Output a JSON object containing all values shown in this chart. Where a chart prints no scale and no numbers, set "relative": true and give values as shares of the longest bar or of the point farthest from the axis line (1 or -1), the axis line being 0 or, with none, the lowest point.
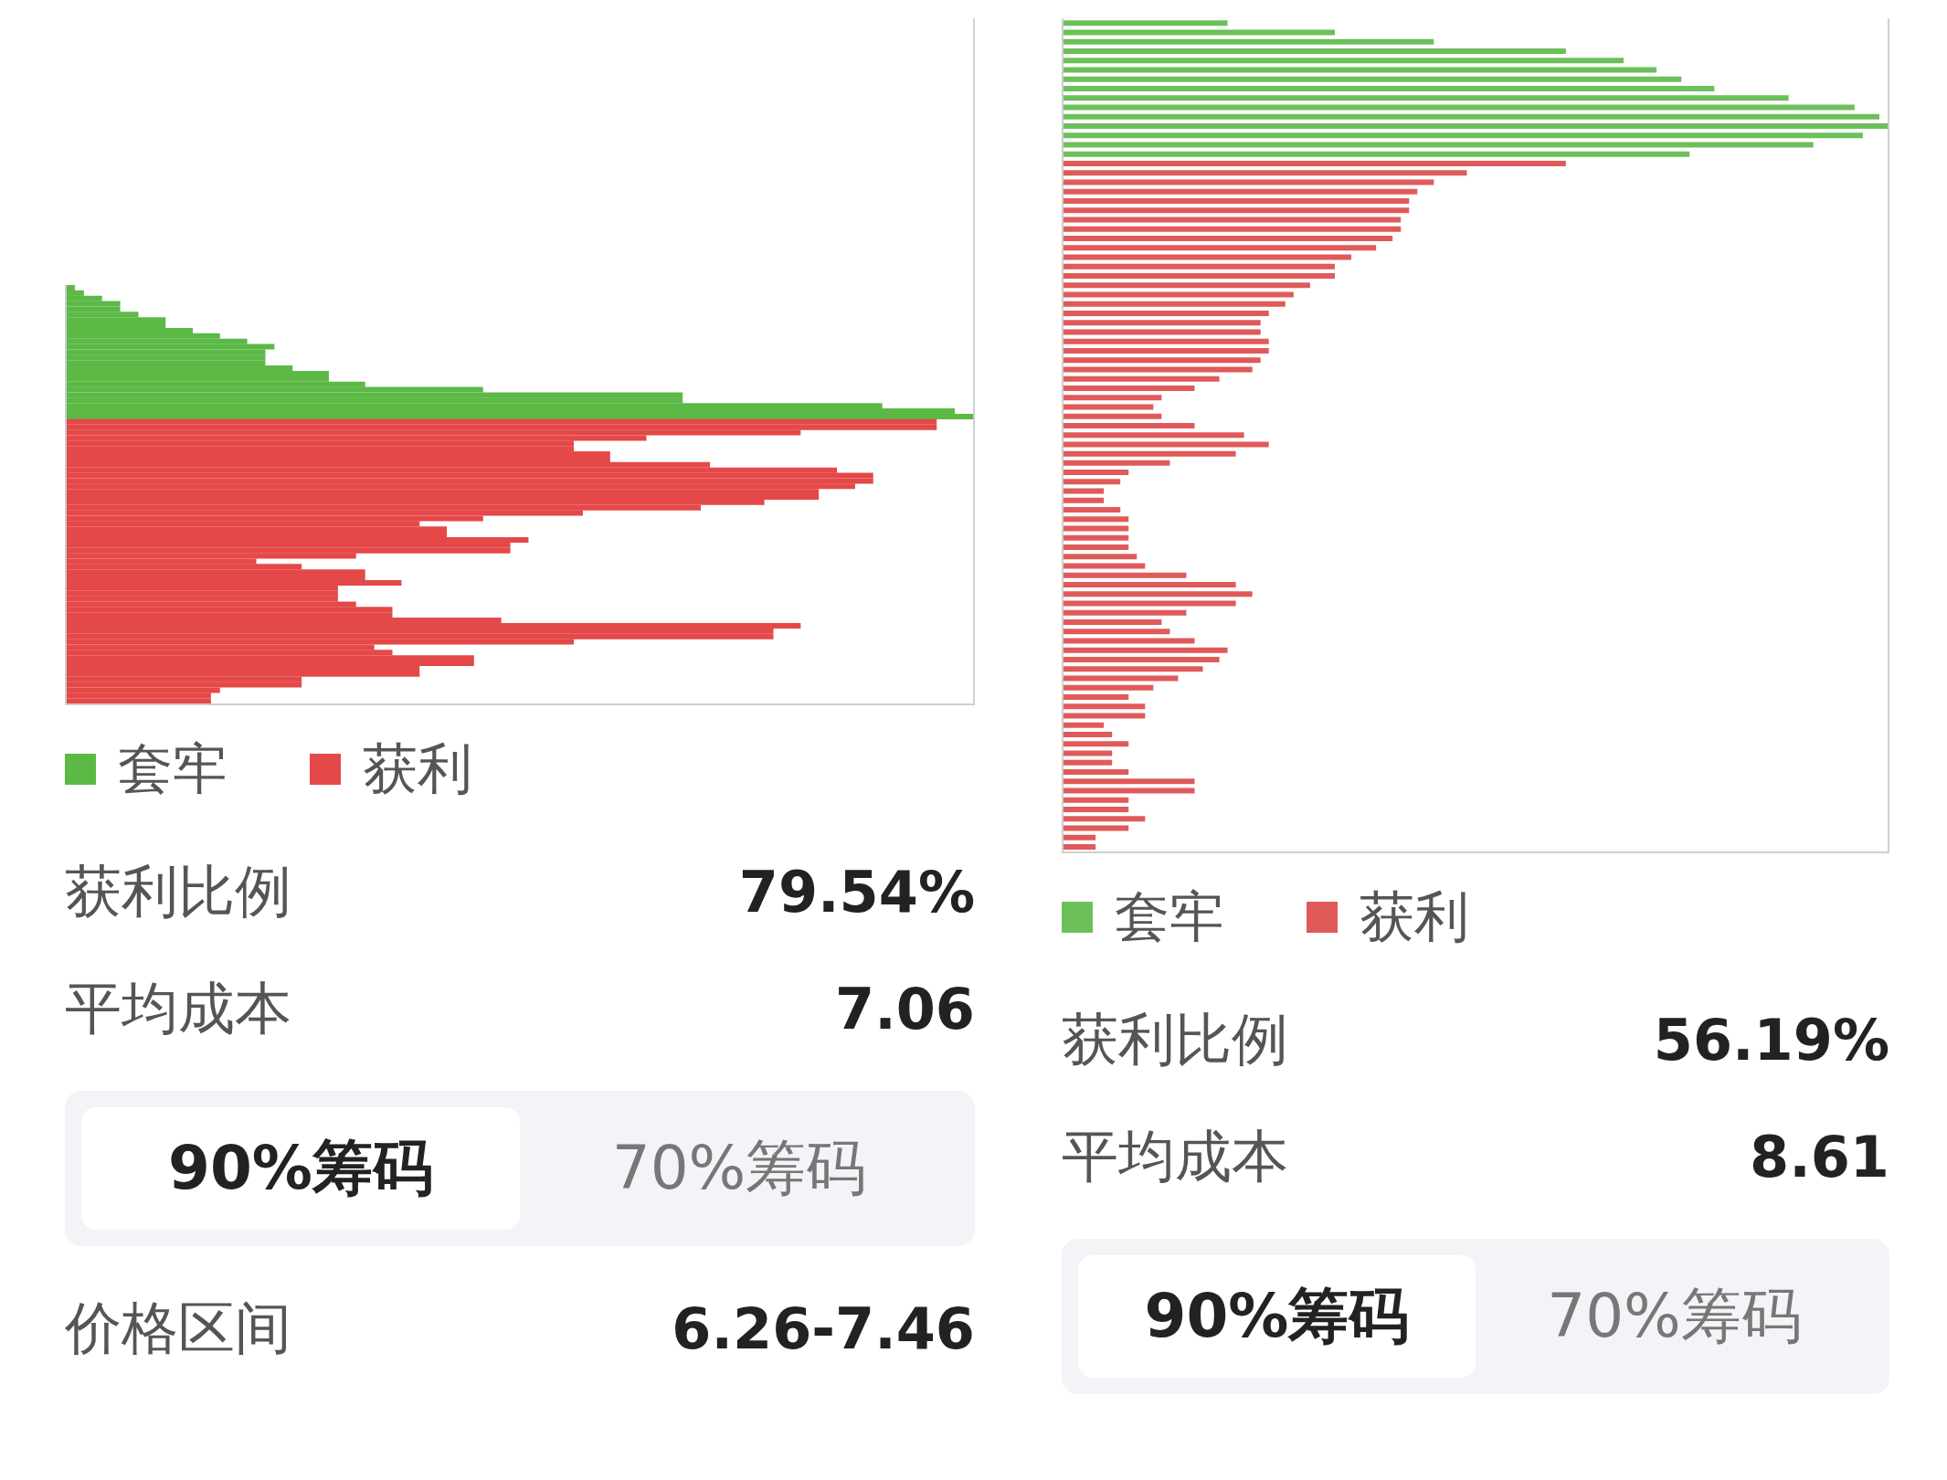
{
  "chart_data": [
    {
      "type": "bar",
      "orientation": "horizontal",
      "relative": true,
      "stacked": true,
      "legend": "bottom left",
      "categories": [
        null,
        null,
        null,
        null,
        null,
        null,
        null,
        null,
        null,
        null,
        null,
        null,
        null,
        null,
        null,
        null,
        null,
        null,
        null,
        null,
        null,
        null,
        null,
        null,
        null,
        null,
        null,
        null,
        null,
        null,
        null,
        null,
        null,
        null,
        null,
        null,
        null,
        null,
        null,
        null,
        null,
        null,
        null,
        null,
        null,
        null,
        null,
        null,
        null,
        null,
        null,
        null,
        null,
        null,
        null,
        null,
        null,
        null,
        null,
        null,
        null,
        null,
        null,
        null,
        null,
        null,
        null,
        null,
        null,
        null,
        null,
        null,
        null,
        null,
        null,
        null,
        null,
        null
      ],
      "series": [
        {
          "name": "套牢",
          "color": "#5cb946",
          "values": [
            0.01,
            0.02,
            0.04,
            0.06,
            0.06,
            0.08,
            0.11,
            0.11,
            0.14,
            0.17,
            0.2,
            0.23,
            0.22,
            0.22,
            0.22,
            0.25,
            0.29,
            0.29,
            0.33,
            0.46,
            0.68,
            0.68,
            0.9,
            0.98,
            1,
            null,
            null,
            null,
            null,
            null,
            null,
            null,
            null,
            null,
            null,
            null,
            null,
            null,
            null,
            null,
            null,
            null,
            null,
            null,
            null,
            null,
            null,
            null,
            null,
            null,
            null,
            null,
            null,
            null,
            null,
            null,
            null,
            null,
            null,
            null,
            null,
            null,
            null,
            null,
            null,
            null,
            null,
            null,
            null,
            null,
            null,
            null,
            null,
            null,
            null,
            null,
            null,
            null
          ]
        },
        {
          "name": "获利",
          "color": "#e54848",
          "values": [
            null,
            null,
            null,
            null,
            null,
            null,
            null,
            null,
            null,
            null,
            null,
            null,
            null,
            null,
            null,
            null,
            null,
            null,
            null,
            null,
            null,
            null,
            null,
            null,
            null,
            0.96,
            0.96,
            0.81,
            0.64,
            0.56,
            0.56,
            0.6,
            0.6,
            0.71,
            0.85,
            0.89,
            0.89,
            0.87,
            0.83,
            0.83,
            0.77,
            0.7,
            0.57,
            0.46,
            0.39,
            0.42,
            0.42,
            0.51,
            0.49,
            0.49,
            0.32,
            0.21,
            0.26,
            0.33,
            0.33,
            0.37,
            0.3,
            0.3,
            0.3,
            0.32,
            0.36,
            0.36,
            0.48,
            0.81,
            0.78,
            0.78,
            0.56,
            0.34,
            0.36,
            0.45,
            0.45,
            0.39,
            0.39,
            0.26,
            0.26,
            0.17,
            0.16,
            0.16
          ]
        }
      ],
      "annotations": [
        "获利比例",
        "79.54%",
        "平均成本",
        "7.06",
        "90%筹码",
        "70%筹码",
        "价格区间",
        "6.26-7.46"
      ]
    },
    {
      "type": "bar",
      "orientation": "horizontal",
      "relative": true,
      "stacked": true,
      "legend": "bottom left",
      "categories": [
        null,
        null,
        null,
        null,
        null,
        null,
        null,
        null,
        null,
        null,
        null,
        null,
        null,
        null,
        null,
        null,
        null,
        null,
        null,
        null,
        null,
        null,
        null,
        null,
        null,
        null,
        null,
        null,
        null,
        null,
        null,
        null,
        null,
        null,
        null,
        null,
        null,
        null,
        null,
        null,
        null,
        null,
        null,
        null,
        null,
        null,
        null,
        null,
        null,
        null,
        null,
        null,
        null,
        null,
        null,
        null,
        null,
        null,
        null,
        null,
        null,
        null,
        null,
        null,
        null,
        null,
        null,
        null,
        null,
        null,
        null,
        null,
        null,
        null,
        null,
        null,
        null,
        null,
        null,
        null,
        null,
        null,
        null,
        null,
        null,
        null,
        null,
        null,
        null
      ],
      "series": [
        {
          "name": "套牢",
          "color": "#6cc05a",
          "values": [
            0.2,
            0.33,
            0.45,
            0.61,
            0.68,
            0.72,
            0.75,
            0.79,
            0.88,
            0.96,
            0.99,
            1,
            0.97,
            0.91,
            0.76,
            null,
            null,
            null,
            null,
            null,
            null,
            null,
            null,
            null,
            null,
            null,
            null,
            null,
            null,
            null,
            null,
            null,
            null,
            null,
            null,
            null,
            null,
            null,
            null,
            null,
            null,
            null,
            null,
            null,
            null,
            null,
            null,
            null,
            null,
            null,
            null,
            null,
            null,
            null,
            null,
            null,
            null,
            null,
            null,
            null,
            null,
            null,
            null,
            null,
            null,
            null,
            null,
            null,
            null,
            null,
            null,
            null,
            null,
            null,
            null,
            null,
            null,
            null,
            null,
            null,
            null,
            null,
            null,
            null,
            null,
            null,
            null,
            null,
            null
          ]
        },
        {
          "name": "获利",
          "color": "#e05a5a",
          "values": [
            null,
            null,
            null,
            null,
            null,
            null,
            null,
            null,
            null,
            null,
            null,
            null,
            null,
            null,
            null,
            0.61,
            0.49,
            0.45,
            0.43,
            0.42,
            0.42,
            0.41,
            0.41,
            0.4,
            0.38,
            0.35,
            0.33,
            0.33,
            0.3,
            0.28,
            0.27,
            0.25,
            0.24,
            0.24,
            0.25,
            0.25,
            0.24,
            0.23,
            0.19,
            0.16,
            0.12,
            0.11,
            0.12,
            0.16,
            0.22,
            0.25,
            0.21,
            0.13,
            0.08,
            0.07,
            0.05,
            0.05,
            0.07,
            0.08,
            0.08,
            0.08,
            0.08,
            0.09,
            0.1,
            0.15,
            0.21,
            0.23,
            0.21,
            0.15,
            0.12,
            0.13,
            0.16,
            0.2,
            0.19,
            0.17,
            0.14,
            0.11,
            0.08,
            0.1,
            0.1,
            0.05,
            0.06,
            0.08,
            0.06,
            0.06,
            0.08,
            0.16,
            0.16,
            0.08,
            0.08,
            0.1,
            0.08,
            0.04,
            0.04
          ]
        }
      ],
      "annotations": [
        "获利比例",
        "56.19%",
        "平均成本",
        "8.61",
        "90%筹码",
        "70%筹码"
      ]
    }
  ]
}
